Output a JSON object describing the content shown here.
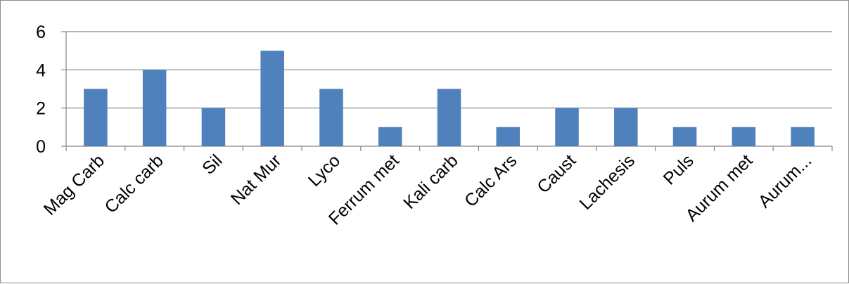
{
  "chart_data": {
    "type": "bar",
    "categories": [
      "Mag Carb",
      "Calc carb",
      "Sil",
      "Nat Mur",
      "Lyco",
      "Ferrum met",
      "Kali carb",
      "Calc Ars",
      "Caust",
      "Lachesis",
      "Puls",
      "Aurum met",
      "Aurum..."
    ],
    "values": [
      3,
      4,
      2,
      5,
      3,
      1,
      3,
      1,
      2,
      2,
      1,
      1,
      1
    ],
    "title": "",
    "xlabel": "",
    "ylabel": "",
    "ylim": [
      0,
      6
    ],
    "yticks": [
      0,
      2,
      4,
      6
    ],
    "grid": true,
    "legend": "none",
    "bar_color": "#4f81bd",
    "grid_color": "#868686"
  }
}
